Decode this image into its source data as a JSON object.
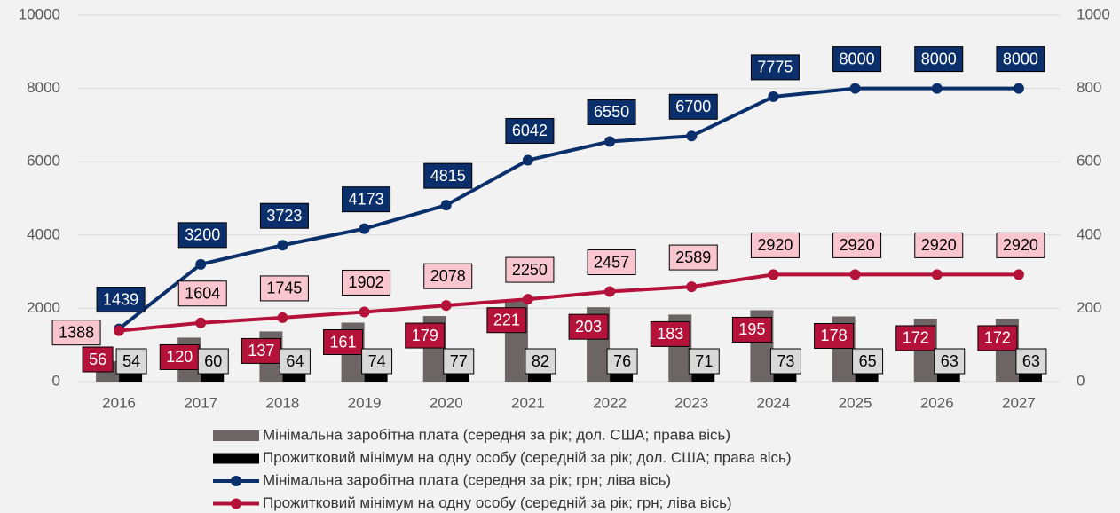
{
  "chart_data": {
    "type": "combo",
    "categories": [
      "2016",
      "2017",
      "2018",
      "2019",
      "2020",
      "2021",
      "2022",
      "2023",
      "2024",
      "2025",
      "2026",
      "2027"
    ],
    "ylim": [
      0,
      10000
    ],
    "yticks": [
      0,
      2000,
      4000,
      6000,
      8000,
      10000
    ],
    "y2lim": [
      0,
      1000
    ],
    "y2ticks": [
      0,
      200,
      400,
      600,
      800,
      1000
    ],
    "grid": true,
    "series": [
      {
        "name": "Мінімальна заробітна плата (середня за рік; дол. США; права вісь)",
        "type": "bar",
        "axis": "y2",
        "color": "#6d6565",
        "label_color": "#b5123a",
        "label_text_color": "#ffffff",
        "values": [
          56,
          120,
          137,
          161,
          179,
          221,
          203,
          183,
          195,
          178,
          172,
          172
        ]
      },
      {
        "name": "Прожитковий мінімум на одну особу (середній за рік; дол. США; права вісь)",
        "type": "bar",
        "axis": "y2",
        "color": "#000000",
        "label_color": "#d9d9d9",
        "label_text_color": "#000000",
        "values": [
          54,
          60,
          64,
          74,
          77,
          82,
          76,
          71,
          73,
          65,
          63,
          63
        ]
      },
      {
        "name": "Мінімальна заробітна плата (середня за рік; грн; ліва вісь)",
        "type": "line",
        "color": "#0a2f6b",
        "label_color": "#0a2f6b",
        "label_text_color": "#ffffff",
        "values": [
          1439,
          3200,
          3723,
          4173,
          4815,
          6042,
          6550,
          6700,
          7775,
          8000,
          8000,
          8000
        ]
      },
      {
        "name": "Прожитковий мінімум на одну особу (середній за рік; грн; ліва вісь)",
        "type": "line",
        "color": "#b5123a",
        "label_color": "#f9c6d0",
        "label_text_color": "#000000",
        "values": [
          1388,
          1604,
          1745,
          1902,
          2078,
          2250,
          2457,
          2589,
          2920,
          2920,
          2920,
          2920
        ]
      }
    ]
  }
}
